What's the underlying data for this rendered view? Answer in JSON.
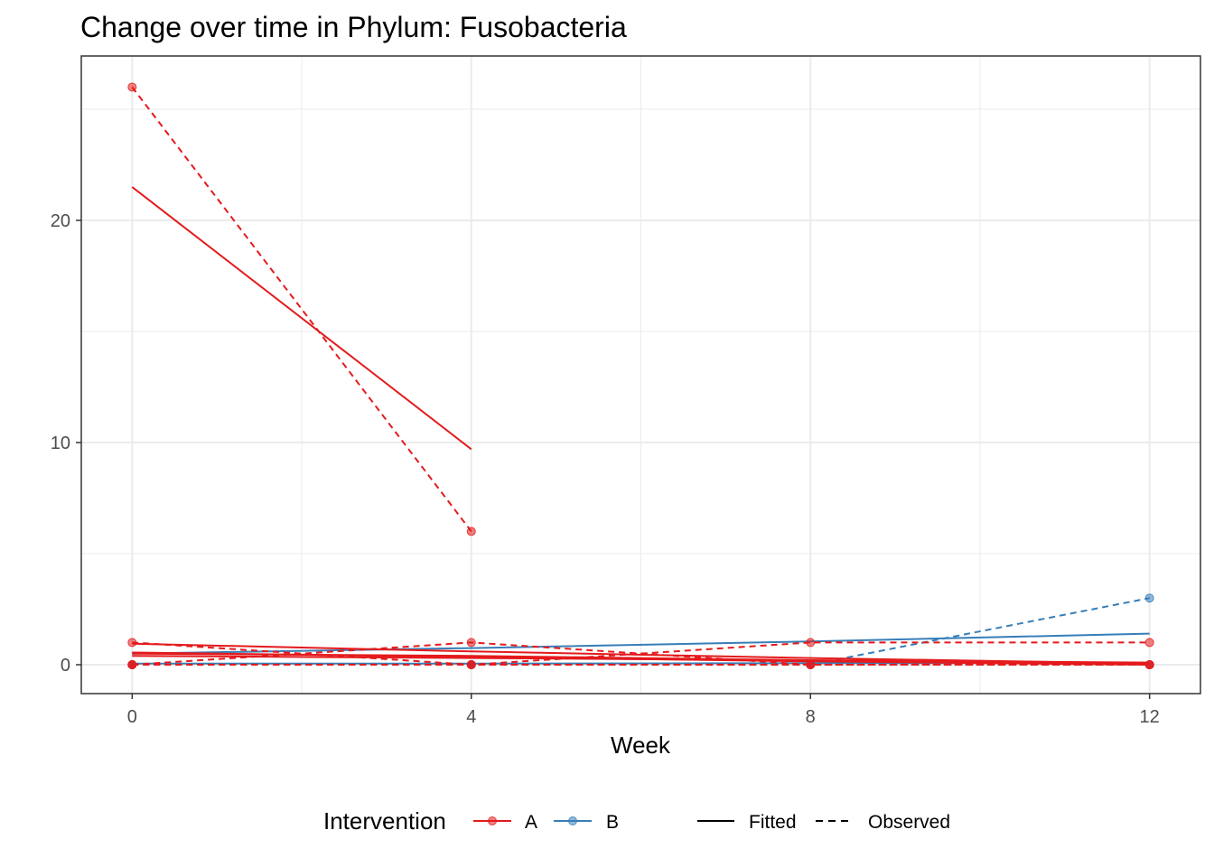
{
  "chart_data": {
    "type": "line",
    "title": "Change over time in Phylum: Fusobacteria",
    "xlabel": "Week",
    "ylabel": "",
    "xlim": [
      -0.6,
      12.6
    ],
    "ylim": [
      -1.3,
      27.4
    ],
    "x_ticks": [
      {
        "value": 0,
        "label": "0"
      },
      {
        "value": 4,
        "label": "4"
      },
      {
        "value": 8,
        "label": "8"
      },
      {
        "value": 12,
        "label": "12"
      }
    ],
    "y_ticks": [
      {
        "value": 0,
        "label": "0"
      },
      {
        "value": 10,
        "label": "10"
      },
      {
        "value": 20,
        "label": "20"
      }
    ],
    "x_minor": [
      2,
      6,
      10
    ],
    "y_minor": [
      5,
      15,
      25
    ],
    "grid": true,
    "legend_position": "bottom",
    "colors": {
      "A": "#e41a1c",
      "B": "#377eb8",
      "grid": "#ebebeb",
      "panel_border": "#333333"
    },
    "legend": {
      "title": "Intervention",
      "groups": [
        {
          "name": "A",
          "color": "#e41a1c"
        },
        {
          "name": "B",
          "color": "#377eb8"
        }
      ],
      "linetypes": [
        {
          "name": "Fitted",
          "dash": "solid"
        },
        {
          "name": "Observed",
          "dash": "dashed"
        }
      ]
    },
    "series": [
      {
        "group": "B",
        "kind": "observed",
        "x": [
          0,
          4,
          8,
          12
        ],
        "y": [
          0.0,
          0.0,
          0.0,
          3.0
        ]
      },
      {
        "group": "B",
        "kind": "fitted",
        "x": [
          0,
          4,
          8,
          12
        ],
        "y": [
          0.5,
          0.75,
          1.05,
          1.4
        ]
      },
      {
        "group": "B",
        "kind": "observed",
        "x": [
          0,
          4,
          8,
          12
        ],
        "y": [
          0.0,
          0.0,
          0.0,
          0.0
        ]
      },
      {
        "group": "B",
        "kind": "fitted",
        "x": [
          0,
          4,
          8,
          12
        ],
        "y": [
          0.05,
          0.05,
          0.07,
          0.08
        ]
      },
      {
        "group": "A",
        "kind": "observed",
        "x": [
          0,
          4
        ],
        "y": [
          26.0,
          6.0
        ]
      },
      {
        "group": "A",
        "kind": "fitted",
        "x": [
          0,
          4
        ],
        "y": [
          21.5,
          9.7
        ]
      },
      {
        "group": "A",
        "kind": "observed",
        "x": [
          0,
          4,
          8,
          12
        ],
        "y": [
          1.0,
          0.0,
          0.0,
          0.0
        ]
      },
      {
        "group": "A",
        "kind": "fitted",
        "x": [
          0,
          4,
          8,
          12
        ],
        "y": [
          0.95,
          0.6,
          0.3,
          0.05
        ]
      },
      {
        "group": "A",
        "kind": "observed",
        "x": [
          0,
          4,
          8,
          12
        ],
        "y": [
          0.0,
          1.0,
          0.0,
          0.0
        ]
      },
      {
        "group": "A",
        "kind": "fitted",
        "x": [
          0,
          4,
          8,
          12
        ],
        "y": [
          0.5,
          0.4,
          0.2,
          0.05
        ]
      },
      {
        "group": "A",
        "kind": "observed",
        "x": [
          0,
          4,
          8,
          12
        ],
        "y": [
          0.0,
          0.0,
          1.0,
          1.0
        ]
      },
      {
        "group": "A",
        "kind": "fitted",
        "x": [
          0,
          4,
          8,
          12
        ],
        "y": [
          0.4,
          0.3,
          0.2,
          0.1
        ]
      },
      {
        "group": "A",
        "kind": "observed",
        "x": [
          0,
          4,
          8,
          12
        ],
        "y": [
          0.0,
          0.0,
          0.0,
          0.0
        ]
      },
      {
        "group": "A",
        "kind": "fitted",
        "x": [
          0,
          4,
          8,
          12
        ],
        "y": [
          0.55,
          0.35,
          0.15,
          0.0
        ]
      }
    ]
  }
}
